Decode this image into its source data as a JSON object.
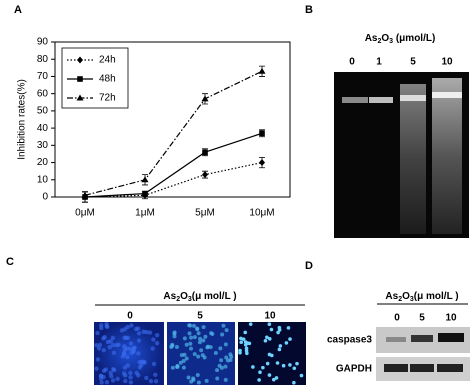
{
  "panel_labels": [
    "A",
    "B",
    "C",
    "D"
  ],
  "chart_data": {
    "type": "line",
    "y_label": "Inhibition rates(%)",
    "categories": [
      "0μM",
      "1μM",
      "5μM",
      "10μM"
    ],
    "ylim": [
      0,
      90
    ],
    "yticks": [
      0,
      10,
      20,
      30,
      40,
      50,
      60,
      70,
      80,
      90
    ],
    "grid": false,
    "legend": "upper-left",
    "series": [
      {
        "name": "24h",
        "color": "#000000",
        "marker": "diamond",
        "dash": "dotted",
        "values": [
          0,
          1,
          13,
          20
        ],
        "errors": [
          3,
          2,
          2,
          3
        ]
      },
      {
        "name": "48h",
        "color": "#000000",
        "marker": "square",
        "dash": "solid",
        "values": [
          0,
          2,
          26,
          37
        ],
        "errors": [
          3,
          1,
          2,
          2
        ]
      },
      {
        "name": "72h",
        "color": "#000000",
        "marker": "triangle",
        "dash": "dashdot",
        "values": [
          1,
          10,
          57,
          73
        ],
        "errors": [
          2,
          3,
          3,
          3
        ]
      }
    ]
  },
  "gel": {
    "reagent": [
      "As",
      "2",
      "O",
      "3"
    ],
    "unit": " (μmol/L)",
    "lanes": [
      "0",
      "1",
      "5",
      "10"
    ]
  },
  "fluorescence": {
    "reagent": [
      "As",
      "2",
      "O",
      "3"
    ],
    "unit": "(μ mol/L )",
    "lanes": [
      "0",
      "5",
      "10"
    ]
  },
  "western": {
    "reagent": [
      "As",
      "2",
      "O",
      "3"
    ],
    "unit": "(μ mol/L )",
    "lanes": [
      "0",
      "5",
      "10"
    ],
    "rows": [
      "caspase3",
      "GAPDH"
    ]
  }
}
